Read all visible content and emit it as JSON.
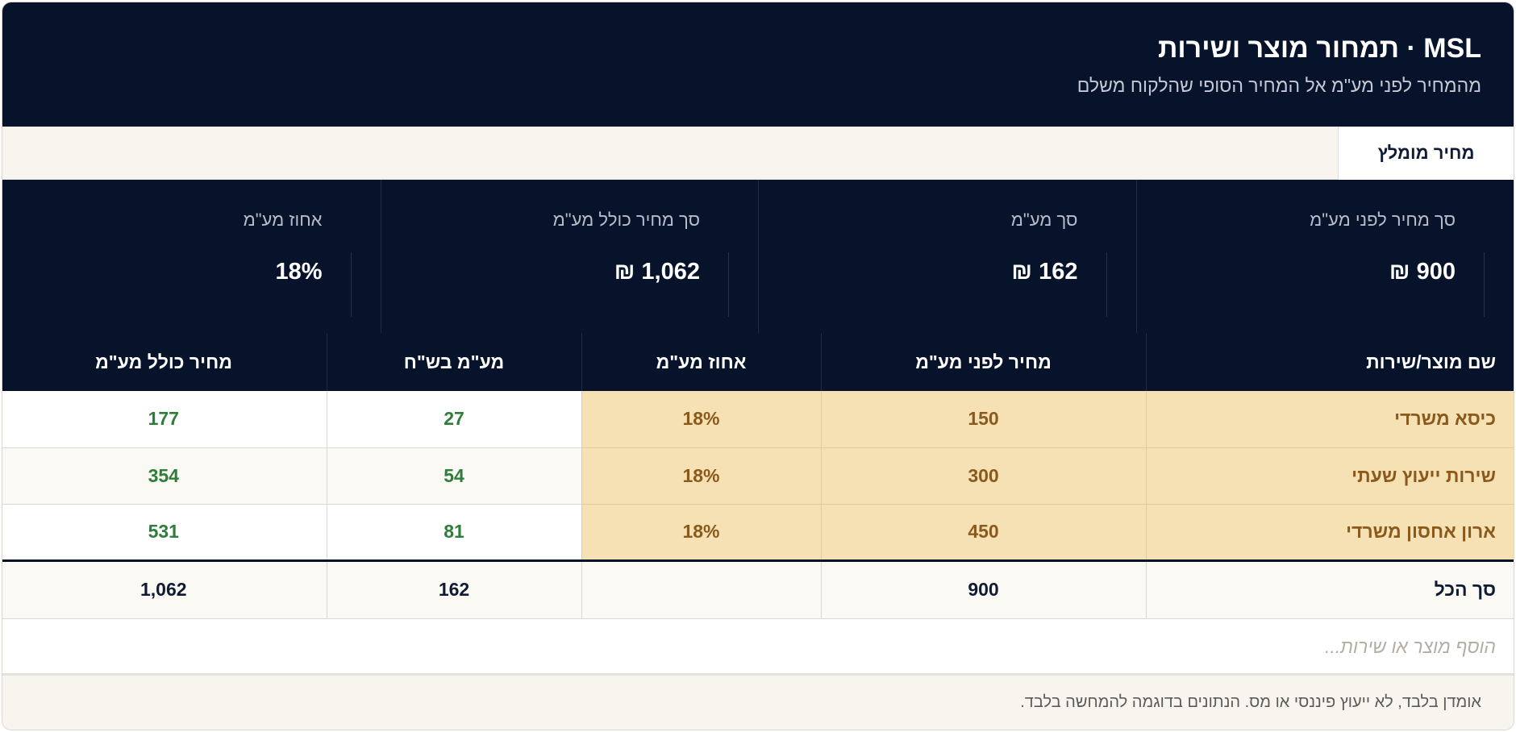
{
  "header": {
    "title": "MSL · תמחור מוצר ושירות",
    "subtitle": "מהמחיר לפני מע\"מ אל המחיר הסופי שהלקוח משלם"
  },
  "tabs": [
    {
      "label": "מחיר מומלץ",
      "active": true
    }
  ],
  "summary": [
    {
      "label": "סך מחיר לפני מע\"מ",
      "value": "900 ₪"
    },
    {
      "label": "סך מע\"מ",
      "value": "162 ₪"
    },
    {
      "label": "סך מחיר כולל מע\"מ",
      "value": "1,062 ₪"
    },
    {
      "label": "אחוז מע\"מ",
      "value": "18%"
    }
  ],
  "table": {
    "columns": [
      "שם מוצר/שירות",
      "מחיר לפני מע\"מ",
      "אחוז מע\"מ",
      "מע\"מ בש\"ח",
      "מחיר כולל מע\"מ"
    ],
    "rows": [
      [
        "כיסא משרדי",
        "150",
        "18%",
        "27",
        "177"
      ],
      [
        "שירות ייעוץ שעתי",
        "300",
        "18%",
        "54",
        "354"
      ],
      [
        "ארון אחסון משרדי",
        "450",
        "18%",
        "81",
        "531"
      ]
    ],
    "total": [
      "סך הכל",
      "900",
      "",
      "162",
      "1,062"
    ]
  },
  "add_row": {
    "placeholder": "הוסף מוצר או שירות..."
  },
  "footer": {
    "text": "אומדן בלבד, לא ייעוץ פיננסי או מס. הנתונים בדוגמה להמחשה בלבד."
  },
  "colors": {
    "header_bg": "#06132b",
    "input_cell_bg": "#f5e1b4",
    "input_text": "#8a5a1c",
    "calc_text": "#2f7d3a"
  }
}
